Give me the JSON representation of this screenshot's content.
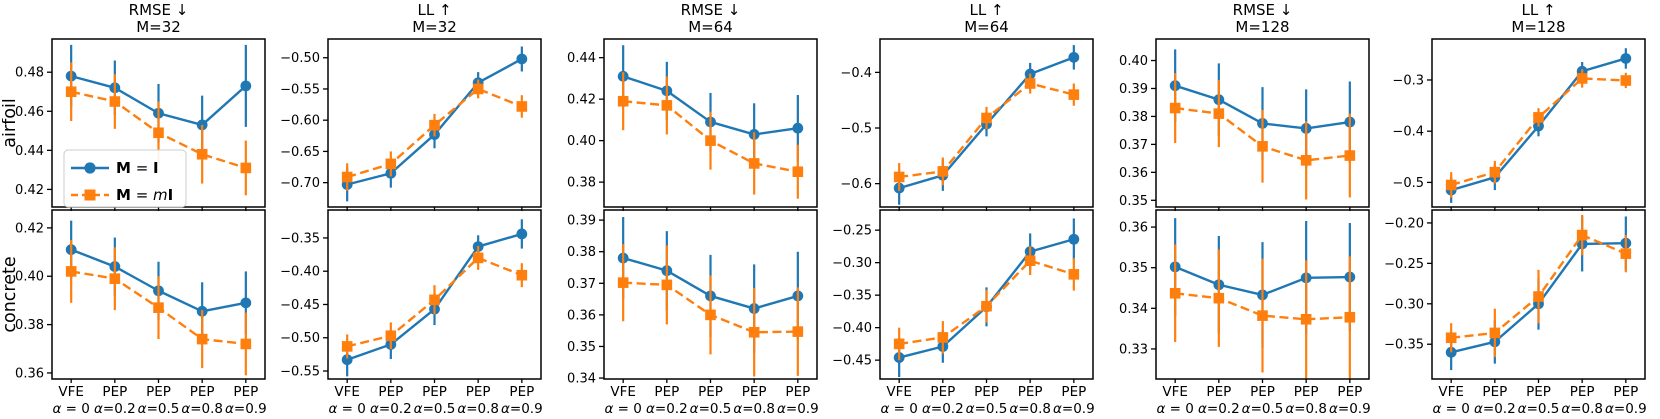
{
  "figure_type": "matplotlib-style subplot grid, 2 rows x 6 columns, errorbar line plots",
  "colors": {
    "series_blue": "#1f77b4",
    "series_orange": "#ff7f0e",
    "frame": "#000000",
    "legend_border": "#cccccc",
    "background": "#ffffff"
  },
  "legend": {
    "entries": [
      {
        "label": "M = I",
        "color": "#1f77b4",
        "marker": "circle",
        "linestyle": "solid"
      },
      {
        "label": "M = mI",
        "color": "#ff7f0e",
        "marker": "square",
        "linestyle": "dashed"
      }
    ]
  },
  "chart_data": {
    "type": "line",
    "layout": {
      "rows": 2,
      "cols": 6,
      "shared_x": true,
      "grid": false,
      "legend_position": "lower left of first subplot"
    },
    "categories": [
      "VFE α = 0",
      "PEP α=0.2",
      "PEP α=0.5",
      "PEP α=0.8",
      "PEP α=0.9"
    ],
    "x_tick_labels_line1": [
      "VFE",
      "PEP",
      "PEP",
      "PEP",
      "PEP"
    ],
    "x_tick_labels_line2": [
      "α = 0",
      "α=0.2",
      "α=0.5",
      "α=0.8",
      "α=0.9"
    ],
    "row_labels": [
      "airfoil",
      "concrete"
    ],
    "col_titles": [
      [
        "RMSE ↓",
        "M=32"
      ],
      [
        "LL ↑",
        "M=32"
      ],
      [
        "RMSE ↓",
        "M=64"
      ],
      [
        "LL ↑",
        "M=64"
      ],
      [
        "RMSE ↓",
        "M=128"
      ],
      [
        "LL ↑",
        "M=128"
      ]
    ],
    "series_names": [
      "M = I",
      "M = mI"
    ],
    "subplots": [
      {
        "id": "airfoil-rmse-m32",
        "row": "airfoil",
        "metric": "RMSE",
        "M": 32,
        "show_legend": true,
        "ylim": [
          0.411,
          0.497
        ],
        "ytick_values": [
          0.42,
          0.44,
          0.46,
          0.48
        ],
        "ytick_labels": [
          "0.42",
          "0.44",
          "0.46",
          "0.48"
        ],
        "series": [
          {
            "name": "M = I",
            "values": [
              0.478,
              0.472,
              0.459,
              0.453,
              0.473
            ],
            "errors": [
              0.016,
              0.014,
              0.015,
              0.015,
              0.021
            ]
          },
          {
            "name": "M = mI",
            "values": [
              0.47,
              0.465,
              0.449,
              0.438,
              0.431
            ],
            "errors": [
              0.015,
              0.014,
              0.016,
              0.015,
              0.014
            ]
          }
        ]
      },
      {
        "id": "airfoil-ll-m32",
        "row": "airfoil",
        "metric": "LL",
        "M": 32,
        "show_legend": false,
        "ylim": [
          -0.739,
          -0.47
        ],
        "ytick_values": [
          -0.5,
          -0.55,
          -0.6,
          -0.65,
          -0.7
        ],
        "ytick_labels": [
          "−0.50",
          "−0.55",
          "−0.60",
          "−0.65",
          "−0.70"
        ],
        "series": [
          {
            "name": "M = I",
            "values": [
              -0.703,
              -0.685,
              -0.623,
              -0.54,
              -0.502
            ],
            "errors": [
              0.027,
              0.023,
              0.022,
              0.017,
              0.02
            ]
          },
          {
            "name": "M = mI",
            "values": [
              -0.691,
              -0.67,
              -0.608,
              -0.55,
              -0.578
            ],
            "errors": [
              0.022,
              0.02,
              0.018,
              0.015,
              0.018
            ]
          }
        ]
      },
      {
        "id": "airfoil-rmse-m64",
        "row": "airfoil",
        "metric": "RMSE",
        "M": 64,
        "show_legend": false,
        "ylim": [
          0.368,
          0.449
        ],
        "ytick_values": [
          0.38,
          0.4,
          0.42,
          0.44
        ],
        "ytick_labels": [
          "0.38",
          "0.40",
          "0.42",
          "0.44"
        ],
        "series": [
          {
            "name": "M = I",
            "values": [
              0.431,
              0.424,
              0.409,
              0.403,
              0.406
            ],
            "errors": [
              0.015,
              0.014,
              0.014,
              0.015,
              0.016
            ]
          },
          {
            "name": "M = mI",
            "values": [
              0.419,
              0.417,
              0.4,
              0.389,
              0.385
            ],
            "errors": [
              0.014,
              0.014,
              0.014,
              0.015,
              0.013
            ]
          }
        ]
      },
      {
        "id": "airfoil-ll-m64",
        "row": "airfoil",
        "metric": "LL",
        "M": 64,
        "show_legend": false,
        "ylim": [
          -0.642,
          -0.34
        ],
        "ytick_values": [
          -0.4,
          -0.5,
          -0.6
        ],
        "ytick_labels": [
          "−0.4",
          "−0.5",
          "−0.6"
        ],
        "series": [
          {
            "name": "M = I",
            "values": [
              -0.608,
              -0.585,
              -0.493,
              -0.403,
              -0.373
            ],
            "errors": [
              0.03,
              0.028,
              0.022,
              0.02,
              0.022
            ]
          },
          {
            "name": "M = mI",
            "values": [
              -0.588,
              -0.578,
              -0.482,
              -0.42,
              -0.44
            ],
            "errors": [
              0.025,
              0.025,
              0.02,
              0.018,
              0.02
            ]
          }
        ]
      },
      {
        "id": "airfoil-rmse-m128",
        "row": "airfoil",
        "metric": "RMSE",
        "M": 128,
        "show_legend": false,
        "ylim": [
          0.3476,
          0.4077
        ],
        "ytick_values": [
          0.35,
          0.36,
          0.37,
          0.38,
          0.39,
          0.4
        ],
        "ytick_labels": [
          "0.35",
          "0.36",
          "0.37",
          "0.38",
          "0.39",
          "0.40"
        ],
        "series": [
          {
            "name": "M = I",
            "values": [
              0.391,
              0.386,
              0.3775,
              0.3757,
              0.378
            ],
            "errors": [
              0.013,
              0.013,
              0.013,
              0.014,
              0.0145
            ]
          },
          {
            "name": "M = mI",
            "values": [
              0.383,
              0.381,
              0.3693,
              0.3643,
              0.366
            ],
            "errors": [
              0.0125,
              0.012,
              0.013,
              0.014,
              0.015
            ]
          }
        ]
      },
      {
        "id": "airfoil-ll-m128",
        "row": "airfoil",
        "metric": "LL",
        "M": 128,
        "show_legend": false,
        "ylim": [
          -0.548,
          -0.22
        ],
        "ytick_values": [
          -0.3,
          -0.4,
          -0.5
        ],
        "ytick_labels": [
          "−0.3",
          "−0.4",
          "−0.5"
        ],
        "series": [
          {
            "name": "M = I",
            "values": [
              -0.515,
              -0.49,
              -0.39,
              -0.283,
              -0.258
            ],
            "errors": [
              0.025,
              0.025,
              0.02,
              0.018,
              0.02
            ]
          },
          {
            "name": "M = mI",
            "values": [
              -0.505,
              -0.48,
              -0.373,
              -0.297,
              -0.301
            ],
            "errors": [
              0.025,
              0.022,
              0.018,
              0.018,
              0.015
            ]
          }
        ]
      },
      {
        "id": "concrete-rmse-m32",
        "row": "concrete",
        "metric": "RMSE",
        "M": 32,
        "show_legend": false,
        "ylim": [
          0.3575,
          0.4274
        ],
        "ytick_values": [
          0.36,
          0.38,
          0.4,
          0.42
        ],
        "ytick_labels": [
          "0.36",
          "0.38",
          "0.40",
          "0.42"
        ],
        "series": [
          {
            "name": "M = I",
            "values": [
              0.411,
              0.404,
              0.394,
              0.3855,
              0.389
            ],
            "errors": [
              0.012,
              0.012,
              0.012,
              0.012,
              0.013
            ]
          },
          {
            "name": "M = mI",
            "values": [
              0.402,
              0.399,
              0.387,
              0.374,
              0.372
            ],
            "errors": [
              0.013,
              0.013,
              0.013,
              0.012,
              0.013
            ]
          }
        ]
      },
      {
        "id": "concrete-ll-m32",
        "row": "concrete",
        "metric": "LL",
        "M": 32,
        "show_legend": false,
        "ylim": [
          -0.562,
          -0.308
        ],
        "ytick_values": [
          -0.35,
          -0.4,
          -0.45,
          -0.5,
          -0.55
        ],
        "ytick_labels": [
          "−0.35",
          "−0.40",
          "−0.45",
          "−0.50",
          "−0.55"
        ],
        "series": [
          {
            "name": "M = I",
            "values": [
              -0.533,
              -0.51,
              -0.457,
              -0.363,
              -0.344
            ],
            "errors": [
              0.025,
              0.022,
              0.024,
              0.017,
              0.022
            ]
          },
          {
            "name": "M = mI",
            "values": [
              -0.513,
              -0.497,
              -0.443,
              -0.38,
              -0.406
            ],
            "errors": [
              0.018,
              0.02,
              0.022,
              0.018,
              0.018
            ]
          }
        ]
      },
      {
        "id": "concrete-rmse-m64",
        "row": "concrete",
        "metric": "RMSE",
        "M": 64,
        "show_legend": false,
        "ylim": [
          0.3397,
          0.3932
        ],
        "ytick_values": [
          0.34,
          0.35,
          0.36,
          0.37,
          0.38,
          0.39
        ],
        "ytick_labels": [
          "0.34",
          "0.35",
          "0.36",
          "0.37",
          "0.38",
          "0.39"
        ],
        "series": [
          {
            "name": "M = I",
            "values": [
              0.378,
              0.374,
              0.366,
              0.362,
              0.366
            ],
            "errors": [
              0.013,
              0.0125,
              0.013,
              0.014,
              0.014
            ]
          },
          {
            "name": "M = mI",
            "values": [
              0.3702,
              0.3695,
              0.36,
              0.3545,
              0.3547
            ],
            "errors": [
              0.0122,
              0.0125,
              0.0125,
              0.014,
              0.014
            ]
          }
        ]
      },
      {
        "id": "concrete-ll-m64",
        "row": "concrete",
        "metric": "LL",
        "M": 64,
        "show_legend": false,
        "ylim": [
          -0.479,
          -0.219
        ],
        "ytick_values": [
          -0.25,
          -0.3,
          -0.35,
          -0.4,
          -0.45
        ],
        "ytick_labels": [
          "−0.25",
          "−0.30",
          "−0.35",
          "−0.40",
          "−0.45"
        ],
        "series": [
          {
            "name": "M = I",
            "values": [
              -0.446,
              -0.429,
              -0.368,
              -0.283,
              -0.264
            ],
            "errors": [
              0.03,
              0.025,
              0.03,
              0.028,
              0.032
            ]
          },
          {
            "name": "M = mI",
            "values": [
              -0.425,
              -0.415,
              -0.367,
              -0.297,
              -0.318
            ],
            "errors": [
              0.025,
              0.025,
              0.025,
              0.022,
              0.025
            ]
          }
        ]
      },
      {
        "id": "concrete-rmse-m128",
        "row": "concrete",
        "metric": "RMSE",
        "M": 128,
        "show_legend": false,
        "ylim": [
          0.3226,
          0.3642
        ],
        "ytick_values": [
          0.33,
          0.34,
          0.35,
          0.36
        ],
        "ytick_labels": [
          "0.33",
          "0.34",
          "0.35",
          "0.36"
        ],
        "series": [
          {
            "name": "M = I",
            "values": [
              0.3502,
              0.3458,
              0.3433,
              0.3475,
              0.3477
            ],
            "errors": [
              0.012,
              0.012,
              0.013,
              0.014,
              0.0133
            ]
          },
          {
            "name": "M = mI",
            "values": [
              0.3437,
              0.3425,
              0.3382,
              0.3373,
              0.3378
            ],
            "errors": [
              0.012,
              0.012,
              0.014,
              0.0145,
              0.015
            ]
          }
        ]
      },
      {
        "id": "concrete-ll-m128",
        "row": "concrete",
        "metric": "LL",
        "M": 128,
        "show_legend": false,
        "ylim": [
          -0.393,
          -0.184
        ],
        "ytick_values": [
          -0.2,
          -0.25,
          -0.3,
          -0.35
        ],
        "ytick_labels": [
          "−0.20",
          "−0.25",
          "−0.30",
          "−0.35"
        ],
        "series": [
          {
            "name": "M = I",
            "values": [
              -0.36,
              -0.347,
              -0.3,
              -0.226,
              -0.225
            ],
            "errors": [
              0.022,
              0.027,
              0.032,
              0.034,
              0.033
            ]
          },
          {
            "name": "M = mI",
            "values": [
              -0.342,
              -0.336,
              -0.291,
              -0.215,
              -0.238
            ],
            "errors": [
              0.018,
              0.03,
              0.033,
              0.025,
              0.023
            ]
          }
        ]
      }
    ]
  }
}
